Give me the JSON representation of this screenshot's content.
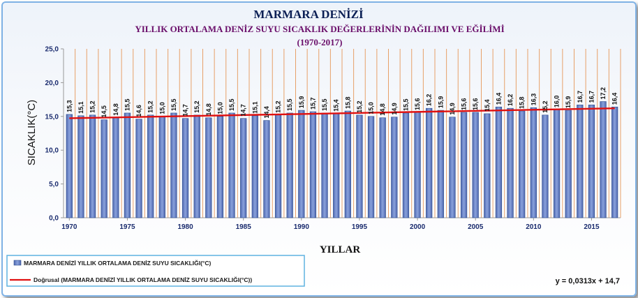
{
  "chart_data": {
    "type": "bar",
    "title": "MARMARA DENİZİ",
    "subtitle": "YILLIK  ORTALAMA DENİZ SUYU SICAKLIK DEĞERLERİNİN DAĞILIMI VE EĞİLİMİ",
    "period": "(1970-2017)",
    "xlabel": "YILLAR",
    "ylabel": "SICAKLIK(°C)",
    "ylim": [
      0,
      25
    ],
    "yticks": [
      "0,0",
      "5,0",
      "10,0",
      "15,0",
      "20,0",
      "25,0"
    ],
    "xticks": [
      "1970",
      "1975",
      "1980",
      "1985",
      "1990",
      "1995",
      "2000",
      "2005",
      "2010",
      "2015"
    ],
    "grid": "vertical",
    "legend_position": "bottom-left",
    "categories": [
      1970,
      1971,
      1972,
      1973,
      1974,
      1975,
      1976,
      1977,
      1978,
      1979,
      1980,
      1981,
      1982,
      1983,
      1984,
      1985,
      1986,
      1987,
      1988,
      1989,
      1990,
      1991,
      1992,
      1993,
      1994,
      1995,
      1996,
      1997,
      1998,
      1999,
      2000,
      2001,
      2002,
      2003,
      2004,
      2005,
      2006,
      2007,
      2008,
      2009,
      2010,
      2011,
      2012,
      2013,
      2014,
      2015,
      2016,
      2017
    ],
    "series": [
      {
        "name": "MARMARA DENİZİ  YILLIK ORTALAMA DENİZ SUYU SICAKLIĞI(°C)",
        "values": [
          15.3,
          15.1,
          15.2,
          14.5,
          14.8,
          15.5,
          14.6,
          15.2,
          15.0,
          15.5,
          14.7,
          15.2,
          14.8,
          15.0,
          15.5,
          14.7,
          15.1,
          14.4,
          15.2,
          15.5,
          15.9,
          15.7,
          15.5,
          15.4,
          15.8,
          15.2,
          15.0,
          14.8,
          14.9,
          15.5,
          15.6,
          16.2,
          15.9,
          14.9,
          15.6,
          15.6,
          15.4,
          16.4,
          16.2,
          15.8,
          16.3,
          15.2,
          16.0,
          15.9,
          16.7,
          16.7,
          17.2,
          16.4
        ],
        "labels": [
          "15,3",
          "15,1",
          "15,2",
          "14,5",
          "14,8",
          "15,5",
          "14,6",
          "15,2",
          "15,0",
          "15,5",
          "14,7",
          "15,2",
          "14,8",
          "15,0",
          "15,5",
          "14,7",
          "15,1",
          "14,4",
          "15,2",
          "15,5",
          "15,9",
          "15,7",
          "15,5",
          "15,4",
          "15,8",
          "15,2",
          "15,0",
          "14,8",
          "14,9",
          "15,5",
          "15,6",
          "16,2",
          "15,9",
          "14,9",
          "15,6",
          "15,6",
          "15,4",
          "16,4",
          "16,2",
          "15,8",
          "16,3",
          "15,2",
          "16,0",
          "15,9",
          "16,7",
          "16,7",
          "17,2",
          "16,4"
        ],
        "color": "#6a87c8"
      },
      {
        "name": "Doğrusal (MARMARA DENİZİ  YILLIK ORTALAMA DENİZ SUYU SICAKLIĞI(°C))",
        "type": "trendline",
        "slope": 0.0313,
        "intercept": 14.7,
        "color": "#e01010"
      }
    ],
    "equation": "y = 0,0313x + 14,7"
  },
  "colors": {
    "grid": "#e7a068",
    "axis": "#999999",
    "bar_stroke": "#2f4f8f",
    "trend": "#e01010",
    "legend_border": "#5fb2e0"
  }
}
